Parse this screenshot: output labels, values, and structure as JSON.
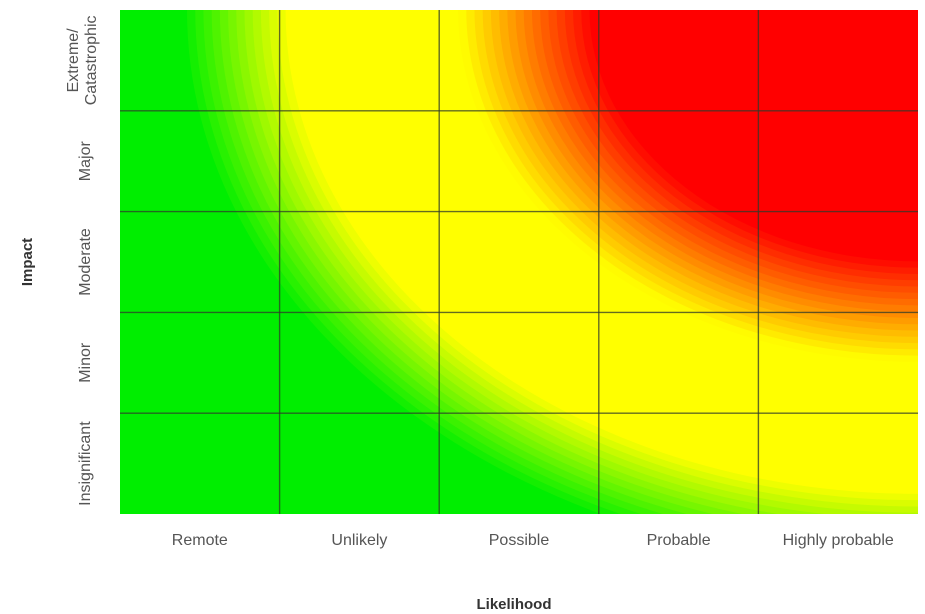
{
  "chart_data": {
    "type": "heatmap",
    "xlabel": "Likelihood",
    "ylabel": "Impact",
    "x_categories": [
      "Remote",
      "Unlikely",
      "Possible",
      "Probable",
      "Highly probable"
    ],
    "y_categories": [
      "Insignificant",
      "Minor",
      "Moderate",
      "Major",
      "Extreme/ Catastrophic"
    ],
    "color_scale": {
      "low": "#00ee00",
      "medium": "#ffff00",
      "high": "#ff0000"
    },
    "grid": true
  }
}
